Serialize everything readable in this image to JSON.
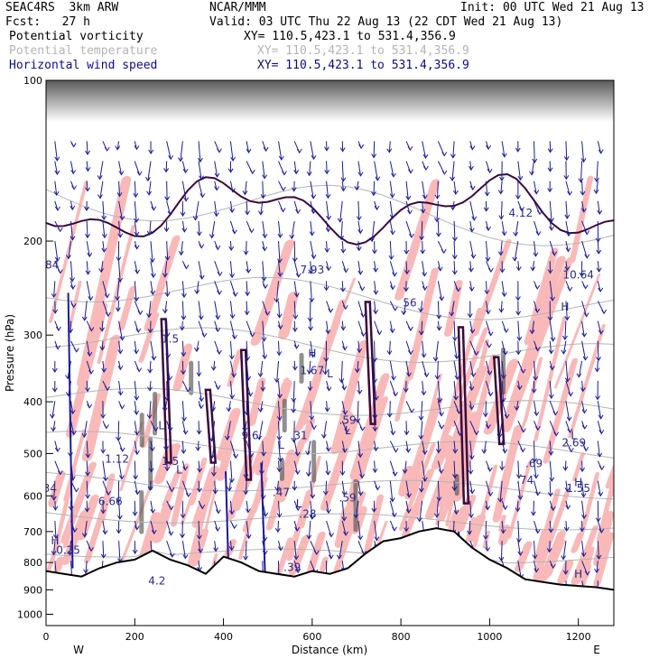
{
  "header": {
    "model": "SEAC4RS  3km ARW",
    "org": "NCAR/MMM",
    "init": "Init: 00 UTC Wed 21 Aug 13",
    "fcst": "Fcst:   27 h",
    "valid": "Valid: 03 UTC Thu 22 Aug 13 (22 CDT Wed 21 Aug 13)"
  },
  "fields": [
    {
      "name": "Potential vorticity",
      "xy": "XY= 110.5,423.1 to 531.4,356.9",
      "color": "#000000"
    },
    {
      "name": "Potential temperature",
      "xy": "XY= 110.5,423.1 to 531.4,356.9",
      "color": "#b4b4b4"
    },
    {
      "name": "Horizontal wind speed",
      "xy": "XY= 110.5,423.1 to 531.4,356.9",
      "color": "#0a0a8c"
    }
  ],
  "colors": {
    "pv_fill": "#f9b9b9",
    "pv_contour": "#3a0a3a",
    "wind": "#1a1a9a",
    "theta": "#b4b4b4",
    "terrain": "#000000"
  },
  "chart_data": {
    "type": "cross-section",
    "xlabel": "Distance (km)",
    "ylabel": "Pressure (hPa)",
    "xlim": [
      0,
      1280
    ],
    "ylim": [
      1050,
      100
    ],
    "y_scale": "log",
    "x_ticks": [
      "0",
      "200",
      "400",
      "600",
      "800",
      "1000",
      "1200"
    ],
    "y_ticks": [
      "100",
      "200",
      "300",
      "400",
      "500",
      "600",
      "700",
      "800",
      "900",
      "1000"
    ],
    "end_labels": {
      "left": "W",
      "right": "E"
    },
    "terrain": {
      "x": [
        0,
        40,
        80,
        120,
        160,
        200,
        240,
        280,
        320,
        360,
        400,
        440,
        480,
        520,
        560,
        600,
        640,
        680,
        720,
        760,
        800,
        840,
        880,
        920,
        960,
        1000,
        1040,
        1080,
        1120,
        1160,
        1200,
        1240,
        1280
      ],
      "p": [
        830,
        840,
        850,
        820,
        800,
        790,
        760,
        790,
        810,
        840,
        780,
        800,
        830,
        840,
        850,
        830,
        840,
        820,
        770,
        730,
        720,
        700,
        690,
        700,
        750,
        790,
        820,
        860,
        870,
        880,
        885,
        890,
        900
      ]
    },
    "hilo_labels": [
      {
        "text": "H",
        "x": 20,
        "p": 740
      },
      {
        "text": "L",
        "x": 260,
        "p": 450
      },
      {
        "text": "L",
        "x": 300,
        "p": 545
      },
      {
        "text": "L",
        "x": 530,
        "p": 490
      },
      {
        "text": "H",
        "x": 600,
        "p": 330
      },
      {
        "text": "L",
        "x": 640,
        "p": 360
      },
      {
        "text": "L",
        "x": 680,
        "p": 460
      },
      {
        "text": "H",
        "x": 1170,
        "p": 270
      },
      {
        "text": "L",
        "x": 1190,
        "p": 470
      },
      {
        "text": "H",
        "x": 1200,
        "p": 575
      },
      {
        "text": "H",
        "x": 1200,
        "p": 855
      },
      {
        "text": "L",
        "x": 570,
        "p": 630
      }
    ],
    "value_labels": [
      {
        "text": "0.25",
        "x": 50,
        "p": 770
      },
      {
        "text": "1.12",
        "x": 160,
        "p": 520
      },
      {
        "text": "6.66",
        "x": 145,
        "p": 625
      },
      {
        "text": "1.5",
        "x": 280,
        "p": 310
      },
      {
        "text": "1.5",
        "x": 280,
        "p": 525
      },
      {
        "text": "9.6",
        "x": 460,
        "p": 470
      },
      {
        "text": ".47",
        "x": 530,
        "p": 600
      },
      {
        "text": ".31",
        "x": 570,
        "p": 470
      },
      {
        "text": ".28",
        "x": 590,
        "p": 660
      },
      {
        "text": ".59",
        "x": 680,
        "p": 440
      },
      {
        "text": ".59",
        "x": 680,
        "p": 615
      },
      {
        "text": "1.67",
        "x": 600,
        "p": 355
      },
      {
        "text": "7.93",
        "x": 600,
        "p": 230
      },
      {
        "text": "56",
        "x": 820,
        "p": 265
      },
      {
        "text": "2.69",
        "x": 1190,
        "p": 485
      },
      {
        "text": ".69",
        "x": 1100,
        "p": 530
      },
      {
        "text": ".74",
        "x": 1080,
        "p": 570
      },
      {
        "text": "1.55",
        "x": 1200,
        "p": 590
      },
      {
        "text": "10.64",
        "x": 1200,
        "p": 235
      },
      {
        "text": "4.12",
        "x": 1070,
        "p": 180
      },
      {
        "text": ".39",
        "x": 555,
        "p": 830
      },
      {
        "text": "4.2",
        "x": 250,
        "p": 880
      },
      {
        "text": ".84",
        "x": 10,
        "p": 225
      },
      {
        "text": ".34",
        "x": 5,
        "p": 590
      }
    ],
    "cross_section": {
      "from": "110.5,423.1",
      "to": "531.4,356.9"
    }
  }
}
